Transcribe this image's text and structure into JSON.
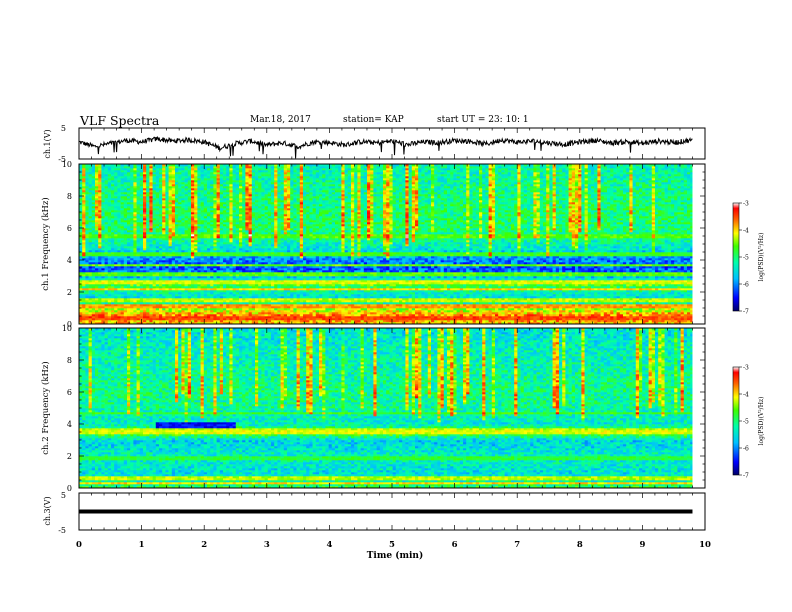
{
  "header": {
    "title": "VLF Spectra",
    "date": "Mar.18, 2017",
    "station": "station= KAP",
    "start": "start UT =  23: 10: 1"
  },
  "chart_data": [
    {
      "type": "line",
      "panel": "ch1-waveform",
      "ylabel": "ch.1(V)",
      "ylim": [
        -5,
        5
      ],
      "yticks": [
        "5",
        "-5"
      ],
      "xlim": [
        0,
        10
      ],
      "x_extent_min": 9.8,
      "description_of_trace": "noisy waveform fluctuating roughly between -2 and +2 V with occasional dips",
      "x": [
        0,
        0.25,
        0.5,
        0.75,
        1,
        1.25,
        1.5,
        1.75,
        2,
        2.25,
        2.5,
        2.75,
        3,
        3.25,
        3.5,
        3.75,
        4,
        4.25,
        4.5,
        4.75,
        5,
        5.25,
        5.5,
        5.75,
        6,
        6.25,
        6.5,
        6.75,
        7,
        7.25,
        7.5,
        7.75,
        8,
        8.25,
        8.5,
        8.75,
        9,
        9.25,
        9.5,
        9.75
      ],
      "y": [
        0.5,
        -1,
        0,
        1,
        0.5,
        1.5,
        0.8,
        1.2,
        0.5,
        -1.5,
        0,
        0.8,
        -0.5,
        0.2,
        -1,
        0.5,
        0.3,
        -0.5,
        0.6,
        0.2,
        0.8,
        -0.4,
        0.5,
        0.3,
        1.0,
        0.7,
        -0.2,
        1.2,
        0.4,
        0.8,
        0.2,
        -0.3,
        0.5,
        1.0,
        0.2,
        0.6,
        0.0,
        0.8,
        0.3,
        1.0
      ]
    },
    {
      "type": "heatmap",
      "panel": "ch1-spectrogram",
      "ylabel": "ch.1\nFrequency (kHz)",
      "ylim": [
        0,
        10
      ],
      "yticks": [
        "0",
        "2",
        "4",
        "6",
        "8",
        "10"
      ],
      "xlim": [
        0,
        10
      ],
      "x_extent_min": 9.8,
      "colorbar": {
        "label": "log(PSD)(V²/Hz)",
        "range": [
          -7,
          -3
        ],
        "ticks": [
          "-3",
          "-4",
          "-5",
          "-6",
          "-7"
        ]
      },
      "profile_kHz": [
        0,
        0.5,
        1,
        1.5,
        2,
        2.5,
        3,
        3.5,
        4,
        4.5,
        5,
        5.5,
        6,
        7,
        8,
        9,
        10
      ],
      "profile_logpsd": [
        -4.0,
        -3.6,
        -4.5,
        -5.6,
        -5.3,
        -4.6,
        -5.8,
        -6.2,
        -6.0,
        -5.6,
        -5.3,
        -5.1,
        -5.0,
        -5.0,
        -5.1,
        -5.2,
        -5.3
      ],
      "lines_kHz": [
        0.4,
        1.1,
        1.5,
        2.2,
        2.6,
        3.1,
        3.7,
        4.4,
        5.5
      ],
      "lines_logpsd": [
        -3.5,
        -3.8,
        -4.3,
        -4.0,
        -4.2,
        -4.6,
        -4.5,
        -4.7,
        -4.6
      ]
    },
    {
      "type": "heatmap",
      "panel": "ch2-spectrogram",
      "ylabel": "ch.2\nFrequency (kHz)",
      "ylim": [
        0,
        10
      ],
      "yticks": [
        "0",
        "2",
        "4",
        "6",
        "8",
        "10"
      ],
      "xlim": [
        0,
        10
      ],
      "x_extent_min": 9.8,
      "colorbar": {
        "label": "log(PSD)(V²/Hz)",
        "range": [
          -7,
          -3
        ],
        "ticks": [
          "-3",
          "-4",
          "-5",
          "-6",
          "-7"
        ]
      },
      "profile_kHz": [
        0,
        0.5,
        1,
        1.5,
        2,
        2.5,
        3,
        3.5,
        4,
        4.5,
        5,
        6,
        7,
        8,
        9,
        10
      ],
      "profile_logpsd": [
        -4.8,
        -5.3,
        -5.5,
        -5.4,
        -5.3,
        -5.5,
        -5.6,
        -4.4,
        -5.4,
        -5.3,
        -5.2,
        -5.1,
        -5.2,
        -5.3,
        -5.4,
        -5.5
      ],
      "lines_kHz": [
        0.3,
        0.6,
        1.9,
        3.5,
        3.7,
        4.7
      ],
      "lines_logpsd": [
        -4.0,
        -4.3,
        -4.8,
        -4.2,
        -4.3,
        -4.7
      ],
      "patch": {
        "x": [
          1.2,
          2.5
        ],
        "y_kHz": [
          3.75,
          4.1
        ],
        "logpsd": -6.5
      }
    },
    {
      "type": "line",
      "panel": "ch3-waveform",
      "ylabel": "ch.3(V)",
      "ylim": [
        -5,
        5
      ],
      "yticks": [
        "5",
        "-5"
      ],
      "xlim": [
        0,
        10
      ],
      "x_extent_min": 9.8,
      "constant_value": 0,
      "xlabel": "Time (min)",
      "xticks": [
        "0",
        "1",
        "2",
        "3",
        "4",
        "5",
        "6",
        "7",
        "8",
        "9",
        "10"
      ]
    }
  ]
}
